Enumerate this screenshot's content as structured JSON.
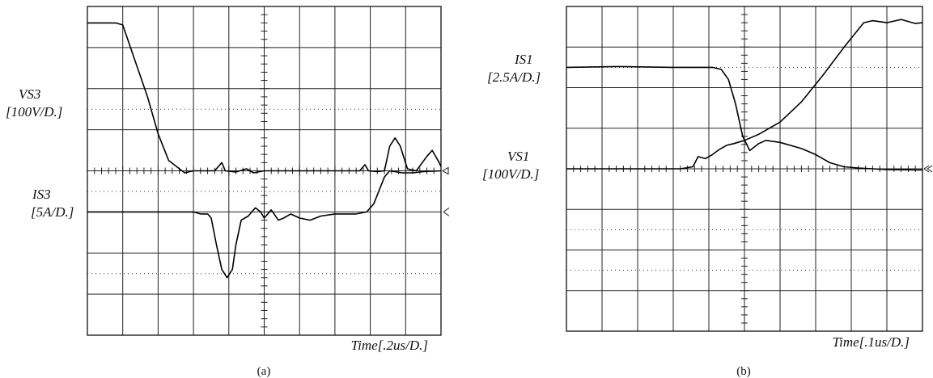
{
  "chart_data": [
    {
      "type": "line",
      "caption": "(a)",
      "xlabel": "Time[.2us/D.]",
      "grid": true,
      "divisions": {
        "x": 10,
        "y": 8
      },
      "series": [
        {
          "name": "VS3",
          "label_lines": [
            "VS3",
            "[100V/D.]"
          ],
          "ground_div": 4,
          "points": [
            [
              0.0,
              7.6
            ],
            [
              0.8,
              7.6
            ],
            [
              1.0,
              7.55
            ],
            [
              1.3,
              6.8
            ],
            [
              1.7,
              5.8
            ],
            [
              2.0,
              4.9
            ],
            [
              2.3,
              4.25
            ],
            [
              2.75,
              3.95
            ],
            [
              3.0,
              4.0
            ],
            [
              3.6,
              4.0
            ],
            [
              3.8,
              4.2
            ],
            [
              3.9,
              4.0
            ],
            [
              4.2,
              3.97
            ],
            [
              4.5,
              4.05
            ],
            [
              4.7,
              3.95
            ],
            [
              5.0,
              4.0
            ],
            [
              7.7,
              4.0
            ],
            [
              7.85,
              4.15
            ],
            [
              7.95,
              4.0
            ],
            [
              8.2,
              3.98
            ],
            [
              8.4,
              4.0
            ],
            [
              8.55,
              4.6
            ],
            [
              8.7,
              4.8
            ],
            [
              8.85,
              4.6
            ],
            [
              9.05,
              4.05
            ],
            [
              9.3,
              4.0
            ],
            [
              9.6,
              4.35
            ],
            [
              9.75,
              4.5
            ],
            [
              9.95,
              4.2
            ],
            [
              10.0,
              4.1
            ]
          ]
        },
        {
          "name": "IS3",
          "label_lines": [
            "IS3",
            "[5A/D.]"
          ],
          "ground_div": 3,
          "points": [
            [
              0.0,
              3.0
            ],
            [
              3.0,
              3.0
            ],
            [
              3.2,
              2.95
            ],
            [
              3.4,
              2.95
            ],
            [
              3.5,
              2.85
            ],
            [
              3.65,
              2.2
            ],
            [
              3.8,
              1.6
            ],
            [
              3.95,
              1.4
            ],
            [
              4.1,
              1.6
            ],
            [
              4.2,
              2.2
            ],
            [
              4.35,
              2.8
            ],
            [
              4.55,
              2.9
            ],
            [
              4.75,
              3.1
            ],
            [
              4.9,
              3.0
            ],
            [
              5.0,
              2.85
            ],
            [
              5.2,
              3.05
            ],
            [
              5.4,
              2.8
            ],
            [
              5.55,
              2.85
            ],
            [
              5.75,
              2.95
            ],
            [
              6.0,
              2.85
            ],
            [
              6.3,
              2.8
            ],
            [
              6.6,
              2.9
            ],
            [
              7.0,
              2.95
            ],
            [
              7.6,
              2.95
            ],
            [
              7.9,
              3.0
            ],
            [
              8.1,
              3.2
            ],
            [
              8.4,
              3.85
            ],
            [
              8.55,
              4.0
            ],
            [
              8.9,
              3.95
            ],
            [
              9.2,
              3.95
            ],
            [
              9.5,
              3.98
            ],
            [
              10.0,
              4.0
            ]
          ]
        }
      ]
    },
    {
      "type": "line",
      "caption": "(b)",
      "xlabel": "Time[.1us/D.]",
      "grid": true,
      "divisions": {
        "x": 10,
        "y": 8
      },
      "series": [
        {
          "name": "IS1",
          "label_lines": [
            "IS1",
            "[2.5A/D.]"
          ],
          "ground_div": 4,
          "points": [
            [
              0.0,
              6.5
            ],
            [
              1.5,
              6.52
            ],
            [
              3.0,
              6.5
            ],
            [
              4.1,
              6.5
            ],
            [
              4.35,
              6.45
            ],
            [
              4.55,
              6.2
            ],
            [
              4.75,
              5.6
            ],
            [
              4.95,
              4.8
            ],
            [
              5.15,
              4.45
            ],
            [
              5.4,
              4.62
            ],
            [
              5.6,
              4.7
            ],
            [
              6.0,
              4.65
            ],
            [
              6.6,
              4.5
            ],
            [
              7.0,
              4.35
            ],
            [
              7.4,
              4.15
            ],
            [
              7.8,
              4.05
            ],
            [
              8.2,
              4.02
            ],
            [
              8.6,
              4.0
            ],
            [
              9.0,
              3.98
            ],
            [
              10.0,
              3.97
            ]
          ]
        },
        {
          "name": "VS1",
          "label_lines": [
            "VS1",
            "[100V/D.]"
          ],
          "ground_div": 4,
          "points": [
            [
              0.0,
              4.0
            ],
            [
              3.2,
              4.0
            ],
            [
              3.55,
              4.05
            ],
            [
              3.7,
              4.3
            ],
            [
              3.9,
              4.25
            ],
            [
              4.1,
              4.35
            ],
            [
              4.3,
              4.48
            ],
            [
              4.5,
              4.58
            ],
            [
              4.7,
              4.62
            ],
            [
              5.0,
              4.7
            ],
            [
              5.4,
              4.85
            ],
            [
              6.0,
              5.15
            ],
            [
              6.6,
              5.65
            ],
            [
              7.2,
              6.3
            ],
            [
              7.8,
              7.0
            ],
            [
              8.35,
              7.6
            ],
            [
              8.6,
              7.65
            ],
            [
              9.0,
              7.6
            ],
            [
              9.4,
              7.68
            ],
            [
              9.8,
              7.58
            ],
            [
              10.0,
              7.6
            ]
          ]
        }
      ]
    }
  ]
}
